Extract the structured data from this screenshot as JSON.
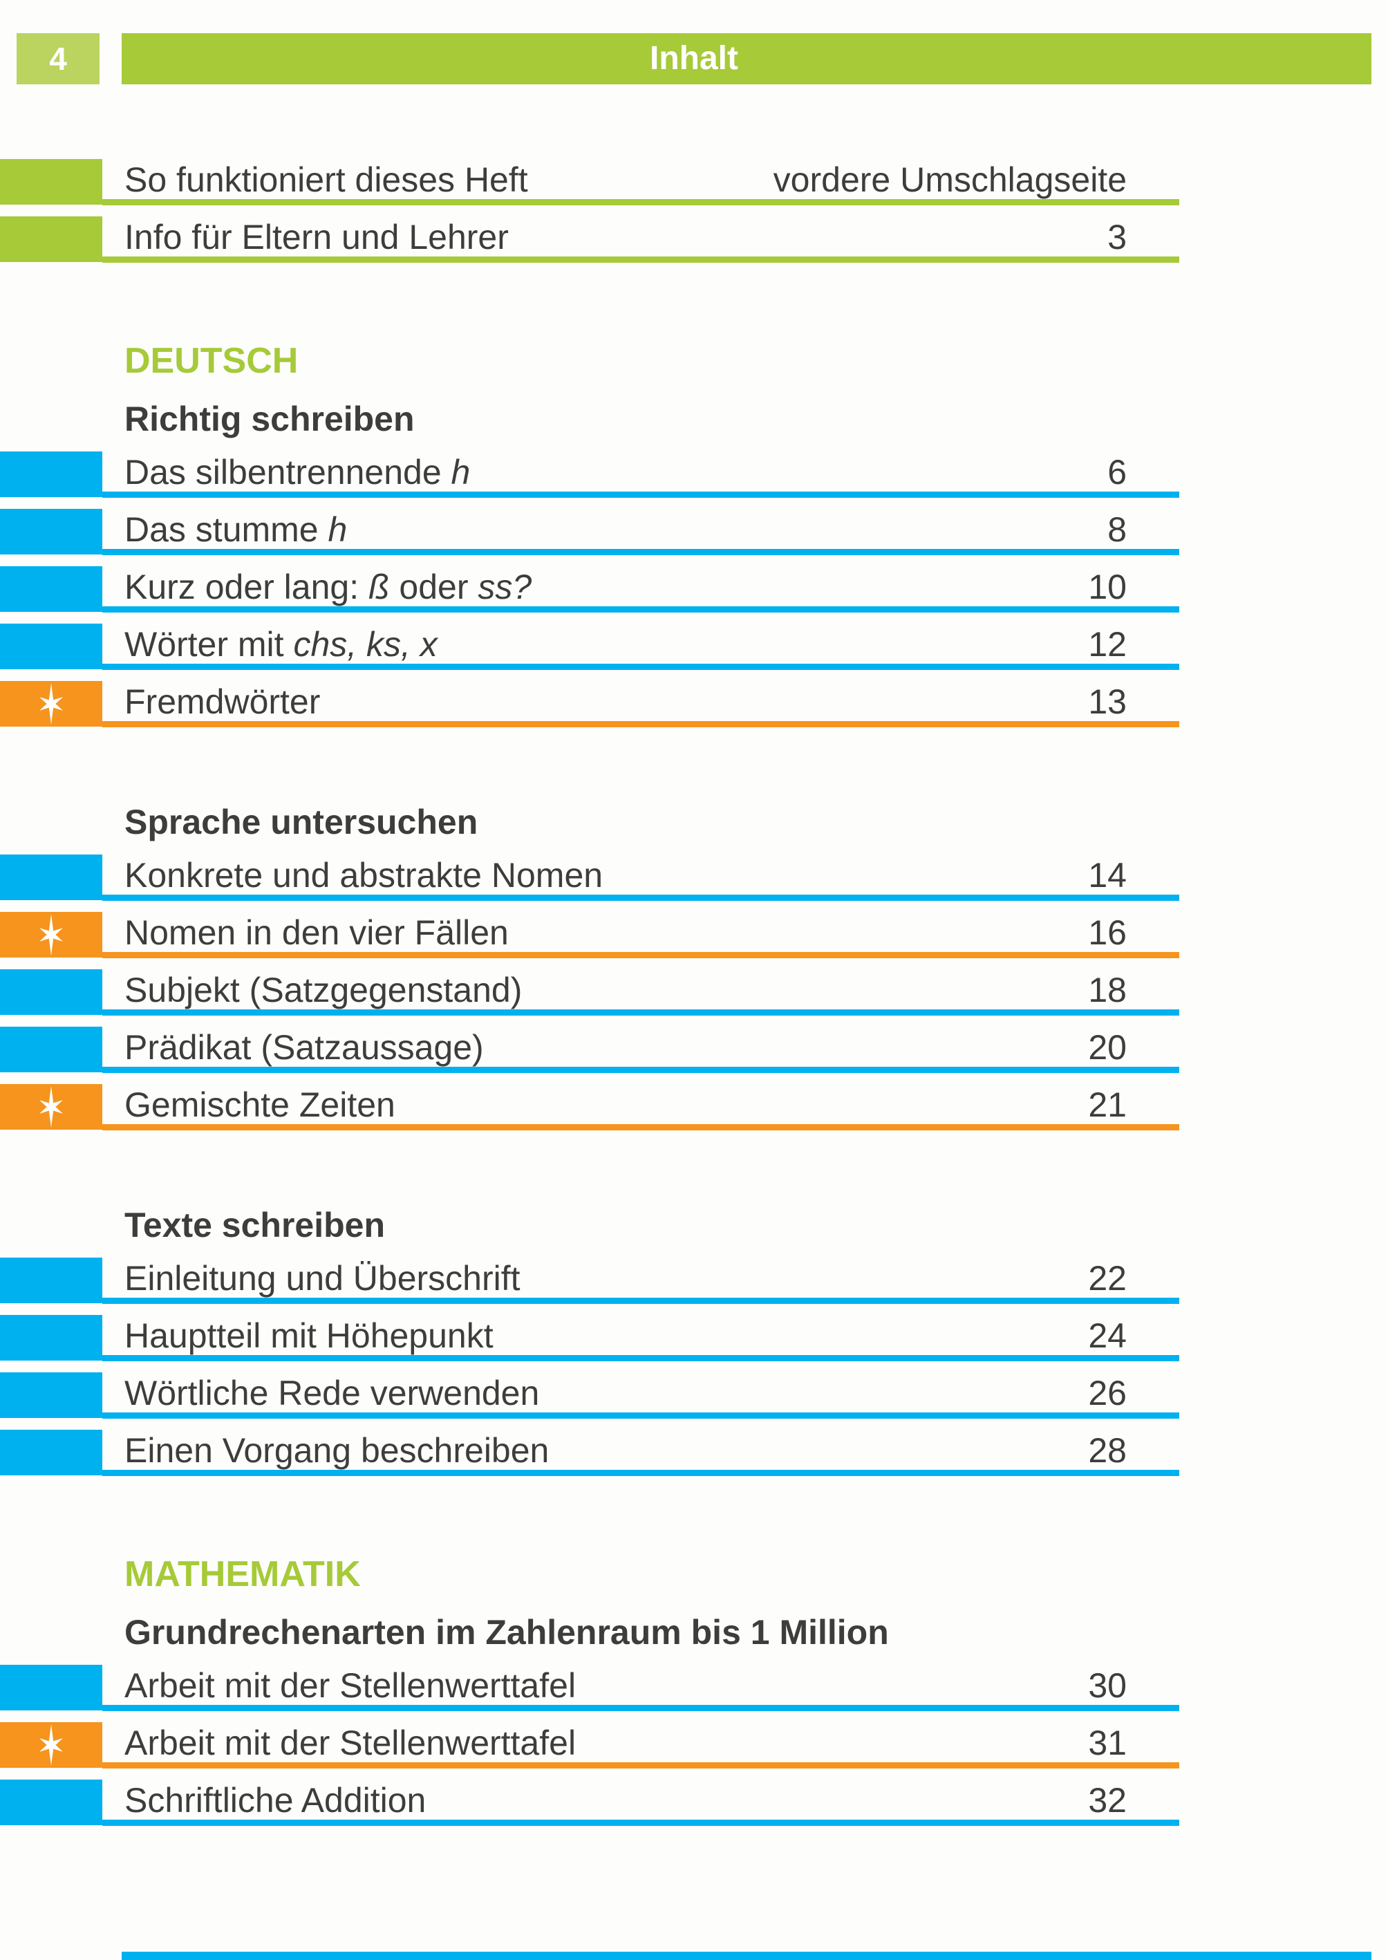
{
  "header": {
    "page_number": "4",
    "title": "Inhalt"
  },
  "colors": {
    "green": "#a6ca38",
    "green_light": "#bad45f",
    "blue": "#00b1f0",
    "orange": "#f6941d",
    "text": "#3d3d3c"
  },
  "icons": {
    "star": "six-pointed white sparkle star on orange tab (marks test pages)"
  },
  "front_rows": [
    {
      "color": "green",
      "star": false,
      "title_parts": [
        {
          "text": "So funktioniert dieses Heft",
          "italic": false
        }
      ],
      "page": "vordere Umschlagseite"
    },
    {
      "color": "green",
      "star": false,
      "title_parts": [
        {
          "text": "Info für Eltern und Lehrer",
          "italic": false
        }
      ],
      "page": "3"
    }
  ],
  "sections": [
    {
      "heading": "DEUTSCH",
      "groups": [
        {
          "subheading": "Richtig schreiben",
          "rows": [
            {
              "color": "blue",
              "star": false,
              "title_parts": [
                {
                  "text": "Das silbentrennende ",
                  "italic": false
                },
                {
                  "text": "h",
                  "italic": true
                }
              ],
              "page": "6"
            },
            {
              "color": "blue",
              "star": false,
              "title_parts": [
                {
                  "text": "Das stumme ",
                  "italic": false
                },
                {
                  "text": "h",
                  "italic": true
                }
              ],
              "page": "8"
            },
            {
              "color": "blue",
              "star": false,
              "title_parts": [
                {
                  "text": "Kurz oder lang: ",
                  "italic": false
                },
                {
                  "text": "ß",
                  "italic": true
                },
                {
                  "text": " oder ",
                  "italic": false
                },
                {
                  "text": "ss?",
                  "italic": true
                }
              ],
              "page": "10"
            },
            {
              "color": "blue",
              "star": false,
              "title_parts": [
                {
                  "text": "Wörter mit ",
                  "italic": false
                },
                {
                  "text": "chs, ks, x",
                  "italic": true
                }
              ],
              "page": "12"
            },
            {
              "color": "orange",
              "star": true,
              "title_parts": [
                {
                  "text": "Fremdwörter",
                  "italic": false
                }
              ],
              "page": "13"
            }
          ]
        },
        {
          "subheading": "Sprache untersuchen",
          "rows": [
            {
              "color": "blue",
              "star": false,
              "title_parts": [
                {
                  "text": "Konkrete und abstrakte Nomen",
                  "italic": false
                }
              ],
              "page": "14"
            },
            {
              "color": "orange",
              "star": true,
              "title_parts": [
                {
                  "text": "Nomen in den vier Fällen",
                  "italic": false
                }
              ],
              "page": "16"
            },
            {
              "color": "blue",
              "star": false,
              "title_parts": [
                {
                  "text": "Subjekt (Satzgegenstand)",
                  "italic": false
                }
              ],
              "page": "18"
            },
            {
              "color": "blue",
              "star": false,
              "title_parts": [
                {
                  "text": "Prädikat (Satzaussage)",
                  "italic": false
                }
              ],
              "page": "20"
            },
            {
              "color": "orange",
              "star": true,
              "title_parts": [
                {
                  "text": "Gemischte Zeiten",
                  "italic": false
                }
              ],
              "page": "21"
            }
          ]
        },
        {
          "subheading": "Texte schreiben",
          "rows": [
            {
              "color": "blue",
              "star": false,
              "title_parts": [
                {
                  "text": "Einleitung und Überschrift",
                  "italic": false
                }
              ],
              "page": "22"
            },
            {
              "color": "blue",
              "star": false,
              "title_parts": [
                {
                  "text": "Hauptteil mit Höhepunkt",
                  "italic": false
                }
              ],
              "page": "24"
            },
            {
              "color": "blue",
              "star": false,
              "title_parts": [
                {
                  "text": "Wörtliche Rede verwenden",
                  "italic": false
                }
              ],
              "page": "26"
            },
            {
              "color": "blue",
              "star": false,
              "title_parts": [
                {
                  "text": "Einen Vorgang beschreiben",
                  "italic": false
                }
              ],
              "page": "28"
            }
          ]
        }
      ]
    },
    {
      "heading": "MATHEMATIK",
      "groups": [
        {
          "subheading": "Grundrechenarten im Zahlenraum bis 1 Million",
          "rows": [
            {
              "color": "blue",
              "star": false,
              "title_parts": [
                {
                  "text": "Arbeit mit der Stellenwerttafel",
                  "italic": false
                }
              ],
              "page": "30"
            },
            {
              "color": "orange",
              "star": true,
              "title_parts": [
                {
                  "text": "Arbeit mit der Stellenwerttafel",
                  "italic": false
                }
              ],
              "page": "31"
            },
            {
              "color": "blue",
              "star": false,
              "title_parts": [
                {
                  "text": "Schriftliche Addition",
                  "italic": false
                }
              ],
              "page": "32"
            }
          ]
        }
      ]
    }
  ]
}
